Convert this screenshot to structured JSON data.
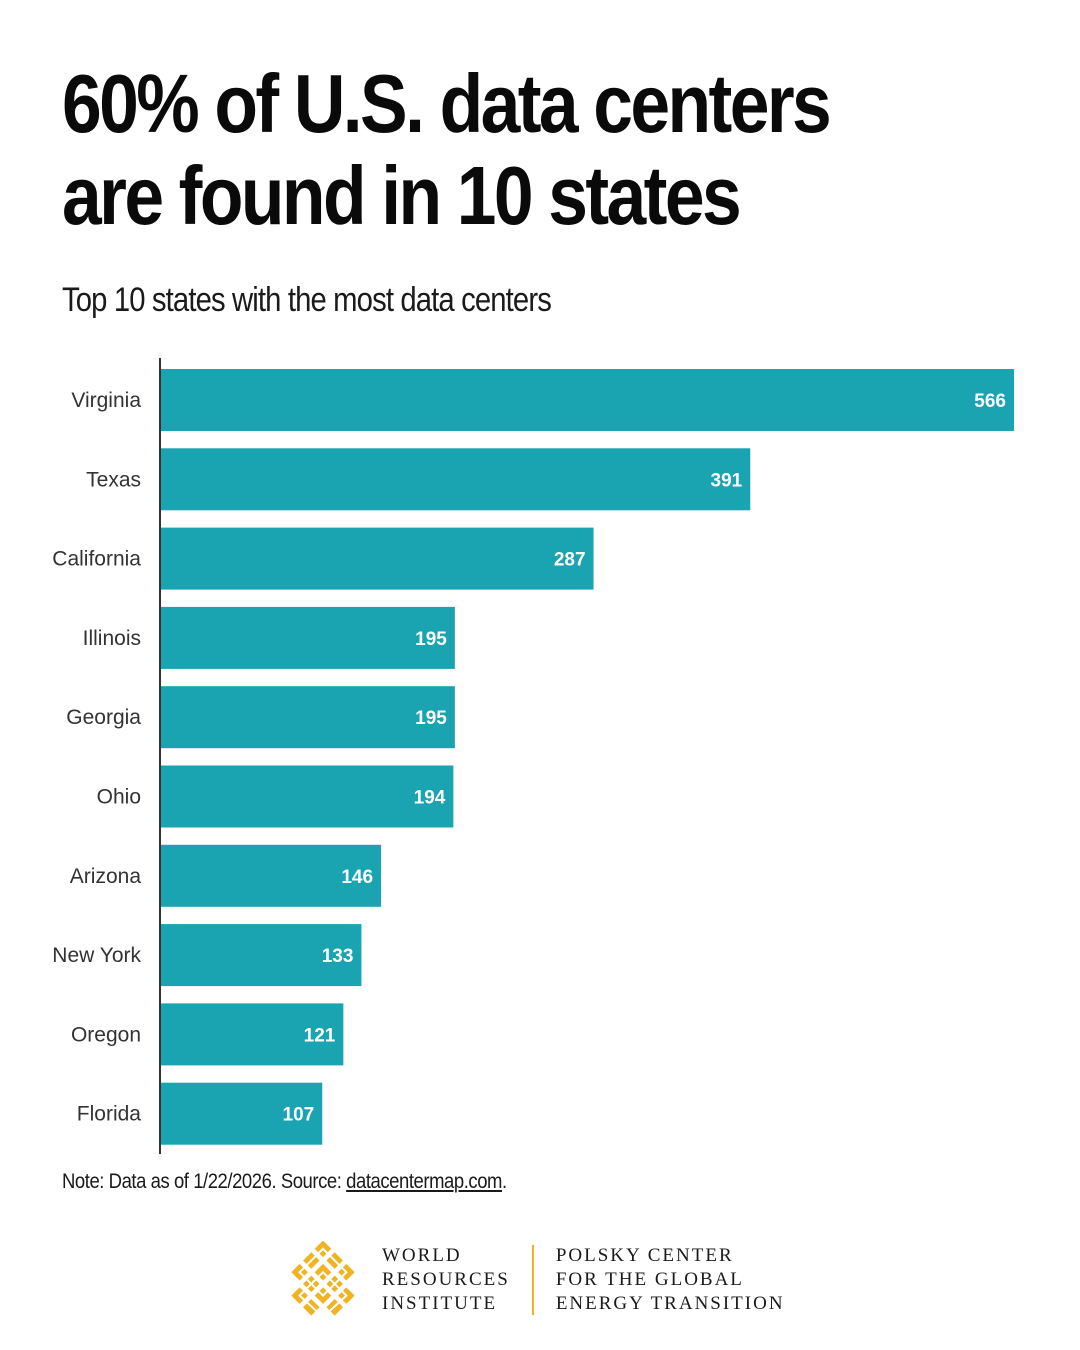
{
  "header": {
    "title": "60% of U.S. data centers are found in 10 states",
    "subtitle": "Top 10 states with the most data centers"
  },
  "chart_data": {
    "type": "bar",
    "orientation": "horizontal",
    "categories": [
      "Virginia",
      "Texas",
      "California",
      "Illinois",
      "Georgia",
      "Ohio",
      "Arizona",
      "New York",
      "Oregon",
      "Florida"
    ],
    "values": [
      566,
      391,
      287,
      195,
      195,
      194,
      146,
      133,
      121,
      107
    ],
    "title": "60% of U.S. data centers are found in 10 states",
    "subtitle": "Top 10 states with the most data centers",
    "xlabel": "",
    "ylabel": "",
    "xlim": [
      0,
      566
    ],
    "grid": false,
    "legend": "none",
    "bar_color": "#1aa3b0",
    "data_labels": "inside-end"
  },
  "footer": {
    "note_prefix": "Note: Data as of 1/22/2026. Source: ",
    "note_link": "datacentermap.com",
    "note_suffix": "."
  },
  "logos": {
    "wri": {
      "icon": "wri-logo-icon",
      "color": "#f0b323",
      "lines": [
        "WORLD",
        "RESOURCES",
        "INSTITUTE"
      ]
    },
    "polsky": {
      "lines": [
        "POLSKY CENTER",
        "FOR THE GLOBAL",
        "ENERGY TRANSITION"
      ]
    },
    "divider_color": "#f0b323"
  }
}
